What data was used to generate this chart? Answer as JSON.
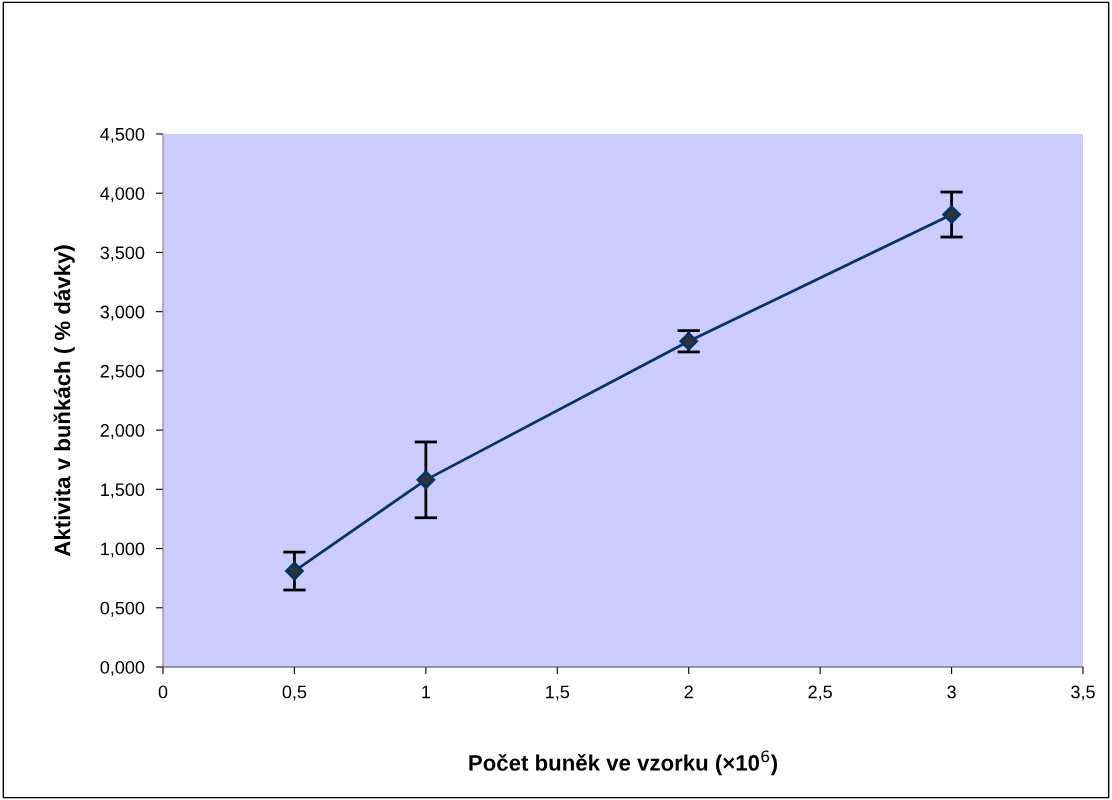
{
  "chart_data": {
    "type": "line",
    "xlabel": "Počet buněk ve vzorku (×10$^{6}$)",
    "ylabel": "Aktivita v buňkách ( % dávky)",
    "x": [
      0.5,
      1,
      2,
      3
    ],
    "series": [
      {
        "color": "#003366",
        "values": [
          0.81,
          1.58,
          2.75,
          3.82
        ],
        "errors": [
          0.16,
          0.32,
          0.09,
          0.19
        ]
      }
    ],
    "xlim": [
      0,
      3.5
    ],
    "xticks": [
      0,
      {
        "value": 0.5,
        "label": "0,5"
      },
      1,
      {
        "value": 1.5,
        "label": "1,5"
      },
      2,
      {
        "value": 2.5,
        "label": "2,5"
      },
      3,
      {
        "value": 3.5,
        "label": "3,5"
      }
    ],
    "ylim": [
      0,
      4.5
    ],
    "yticks": [
      {
        "value": 0,
        "label": "0,000"
      },
      {
        "value": 0.5,
        "label": "0,500"
      },
      {
        "value": 1,
        "label": "1,000"
      },
      {
        "value": 1.5,
        "label": "1,500"
      },
      {
        "value": 2,
        "label": "2,000"
      },
      {
        "value": 2.5,
        "label": "2,500"
      },
      {
        "value": 3,
        "label": "3,000"
      },
      {
        "value": 3.5,
        "label": "3,500"
      },
      {
        "value": 4,
        "label": "4,000"
      },
      {
        "value": 4.5,
        "label": "4,500"
      }
    ],
    "marker": "diamond",
    "line_style": "solid",
    "grid": false,
    "legend": false
  }
}
